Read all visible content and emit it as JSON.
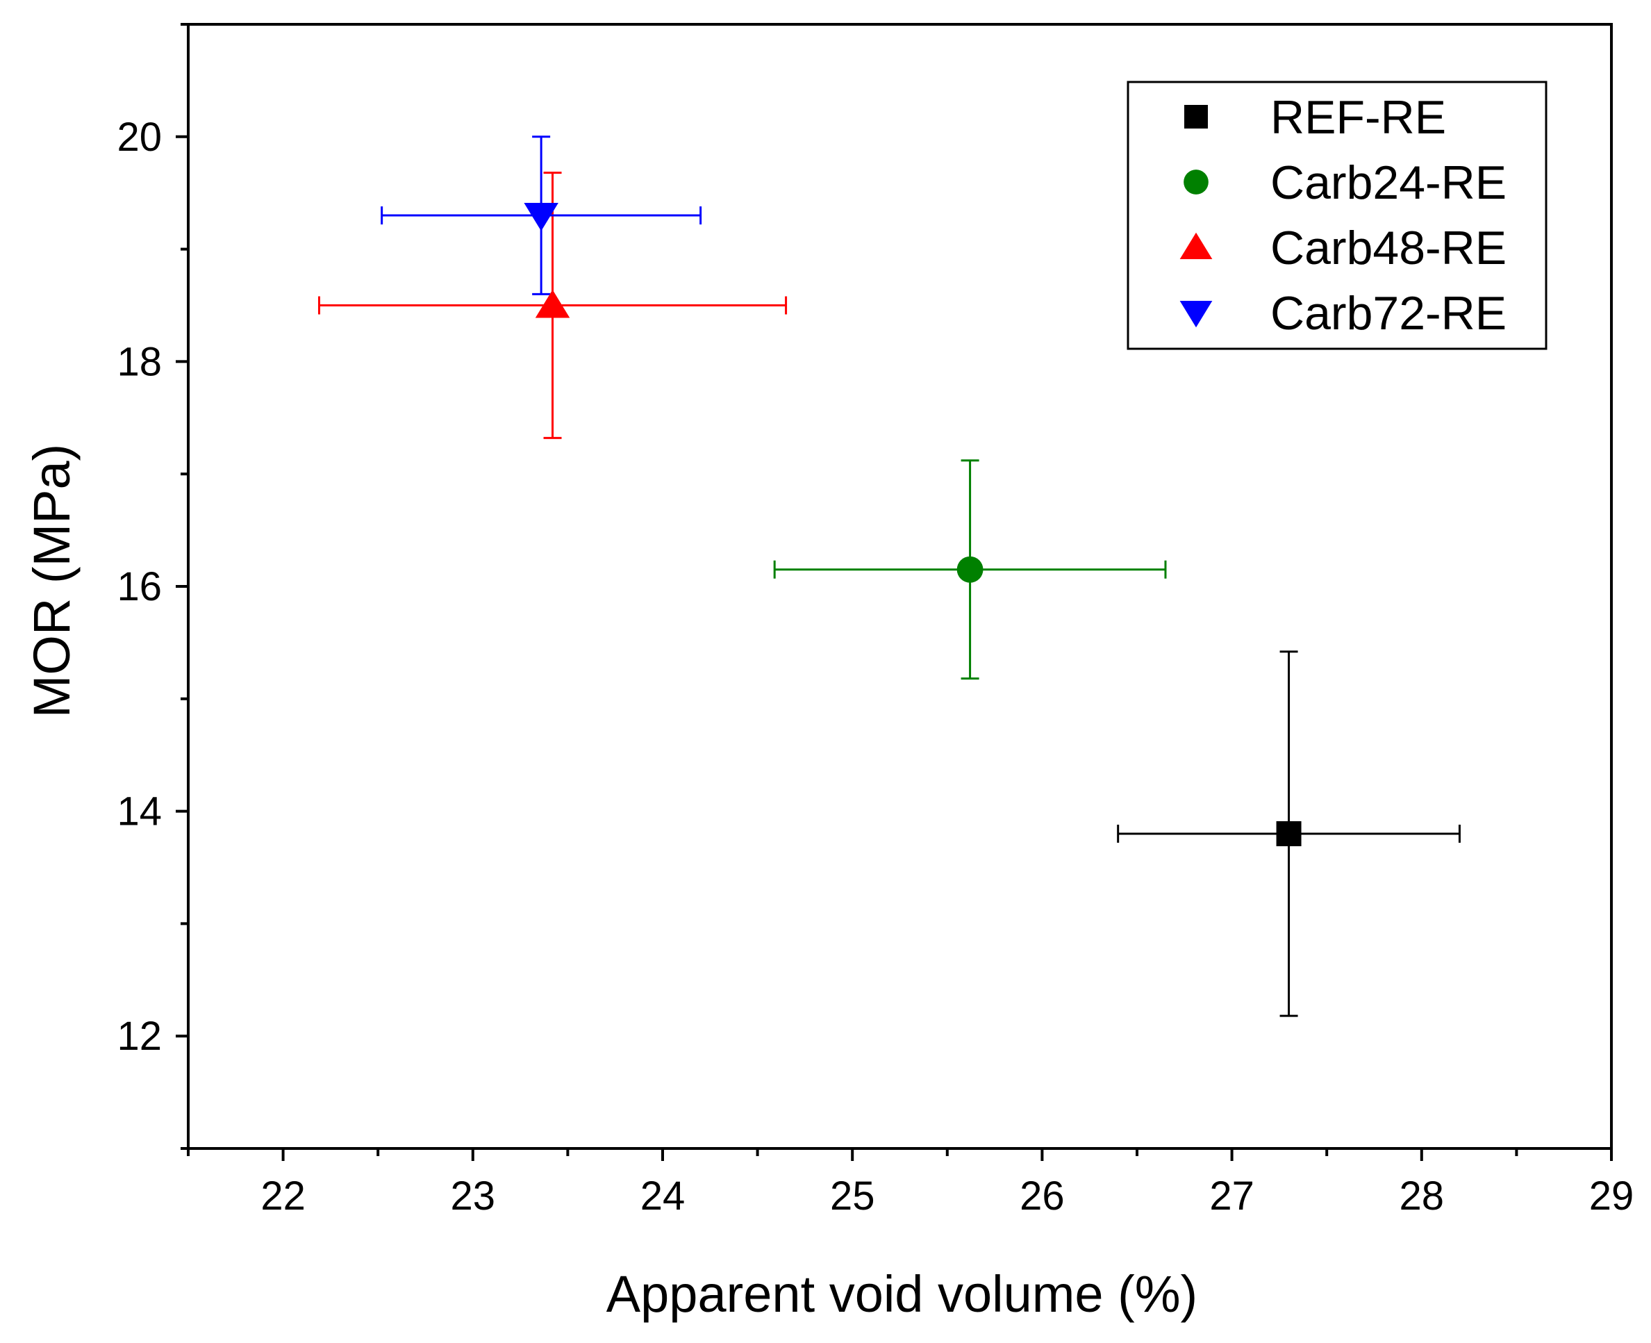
{
  "chart_data": {
    "type": "scatter",
    "title": "",
    "xlabel": "Apparent void volume (%)",
    "ylabel": "MOR (MPa)",
    "xlim": [
      21.5,
      29
    ],
    "ylim": [
      11,
      21
    ],
    "x_ticks": [
      22,
      23,
      24,
      25,
      26,
      27,
      28,
      29
    ],
    "y_ticks": [
      12,
      14,
      16,
      18,
      20
    ],
    "grid": false,
    "legend_position": "top-right",
    "series": [
      {
        "name": "REF-RE",
        "marker": "square",
        "color": "#000000",
        "x": 27.3,
        "y": 13.8,
        "x_err": 0.9,
        "y_err": 1.62
      },
      {
        "name": "Carb24-RE",
        "marker": "circle",
        "color": "#008000",
        "x": 25.62,
        "y": 16.15,
        "x_err": 1.03,
        "y_err": 0.97
      },
      {
        "name": "Carb48-RE",
        "marker": "triangle-up",
        "color": "#ff0000",
        "x": 23.42,
        "y": 18.5,
        "x_err": 1.23,
        "y_err": 1.18
      },
      {
        "name": "Carb72-RE",
        "marker": "triangle-down",
        "color": "#0000ff",
        "x": 23.36,
        "y": 19.3,
        "x_err": 0.84,
        "y_err": 0.7
      }
    ]
  }
}
